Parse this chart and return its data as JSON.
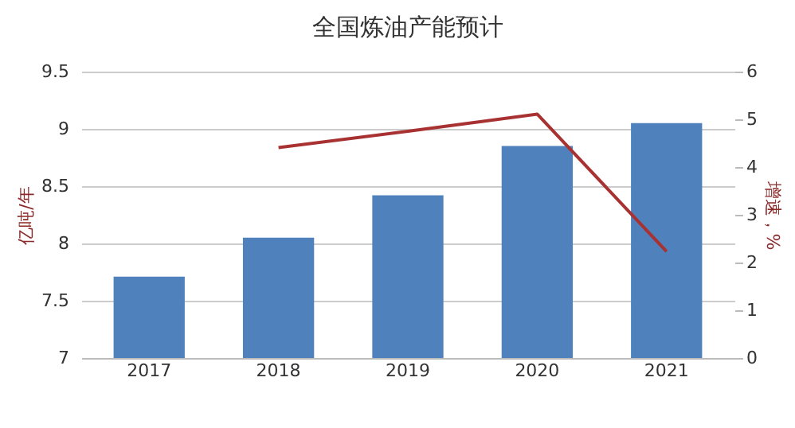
{
  "chart_data": {
    "type": "bar",
    "title": "全国炼油产能预计",
    "categories": [
      "2017",
      "2018",
      "2019",
      "2020",
      "2021"
    ],
    "ylabel": "亿吨/年",
    "y2label": "增速，%",
    "ylim": [
      7,
      9.5
    ],
    "yticks": [
      7,
      7.5,
      8,
      8.5,
      9,
      9.5
    ],
    "y2lim": [
      0,
      6
    ],
    "y2ticks": [
      0,
      1,
      2,
      3,
      4,
      5,
      6
    ],
    "grid": "y",
    "series": [
      {
        "color": "#4f81bd",
        "values": [
          7.71,
          8.05,
          8.42,
          8.85,
          9.05
        ]
      },
      {
        "type": "line",
        "axis": "y2",
        "color": "#a83232",
        "marker": "none",
        "values": [
          null,
          4.41,
          4.75,
          5.11,
          2.23
        ]
      }
    ]
  }
}
